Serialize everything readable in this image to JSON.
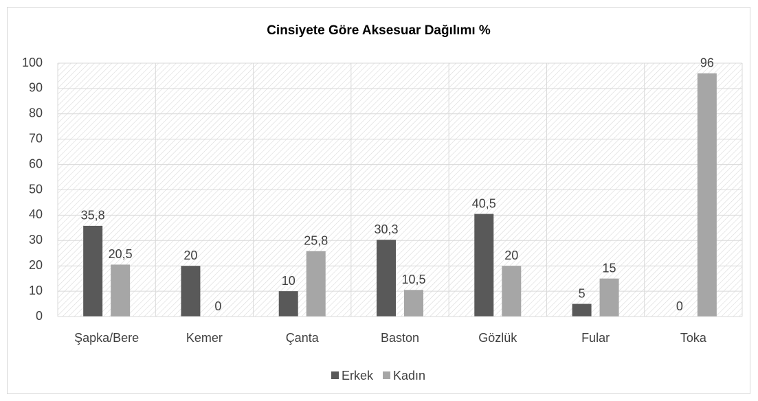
{
  "chart_data": {
    "type": "bar",
    "title": "Cinsiyete Göre Aksesuar Dağılımı %",
    "categories": [
      "Şapka/Bere",
      "Kemer",
      "Çanta",
      "Baston",
      "Gözlük",
      "Fular",
      "Toka"
    ],
    "series": [
      {
        "name": "Erkek",
        "color": "#595959",
        "values": [
          35.8,
          20,
          10,
          30.3,
          40.5,
          5,
          0
        ],
        "value_labels": [
          "35,8",
          "20",
          "10",
          "30,3",
          "40,5",
          "5",
          "0"
        ]
      },
      {
        "name": "Kadın",
        "color": "#a6a6a6",
        "values": [
          20.5,
          0,
          25.8,
          10.5,
          20,
          15,
          96
        ],
        "value_labels": [
          "20,5",
          "0",
          "25,8",
          "10,5",
          "20",
          "15",
          "96"
        ]
      }
    ],
    "ylim": [
      0,
      100
    ],
    "yticks": [
      0,
      10,
      20,
      30,
      40,
      50,
      60,
      70,
      80,
      90,
      100
    ],
    "grid": true,
    "legend": "bottom"
  }
}
